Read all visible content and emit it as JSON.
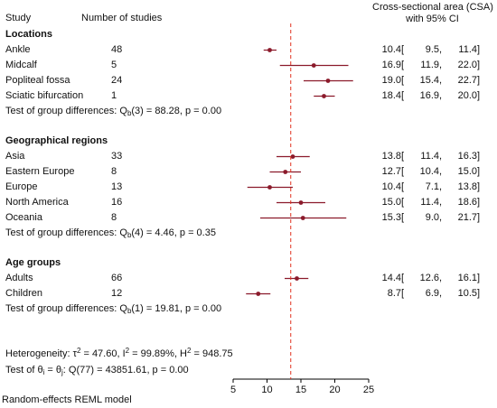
{
  "header": {
    "col_study": "Study",
    "col_num": "Number of studies",
    "col_effect_line1": "Cross-sectional area (CSA)",
    "col_effect_line2": "with 95% CI"
  },
  "chart_data": {
    "type": "forest",
    "ref_line": 13.5,
    "xlim": [
      5,
      25
    ],
    "xticks": [
      5,
      10,
      15,
      20,
      25
    ],
    "groups": [
      {
        "title": "Locations",
        "rows": [
          {
            "label": "Ankle",
            "n": "48",
            "est": 10.4,
            "lo": 9.5,
            "hi": 11.4,
            "est_s": "10.4",
            "lo_s": "9.5",
            "hi_s": "11.4"
          },
          {
            "label": "Midcalf",
            "n": "5",
            "est": 16.9,
            "lo": 11.9,
            "hi": 22.0,
            "est_s": "16.9",
            "lo_s": "11.9",
            "hi_s": "22.0"
          },
          {
            "label": "Popliteal fossa",
            "n": "24",
            "est": 19.0,
            "lo": 15.4,
            "hi": 22.7,
            "est_s": "19.0",
            "lo_s": "15.4",
            "hi_s": "22.7"
          },
          {
            "label": "Sciatic bifurcation",
            "n": "1",
            "est": 18.4,
            "lo": 16.9,
            "hi": 20.0,
            "est_s": "18.4",
            "lo_s": "16.9",
            "hi_s": "20.0"
          }
        ],
        "test": {
          "pre": "Test of group differences: Q",
          "sub": "b",
          "post": "(3) = 88.28, p = 0.00"
        }
      },
      {
        "title": "Geographical regions",
        "rows": [
          {
            "label": "Asia",
            "n": "33",
            "est": 13.8,
            "lo": 11.4,
            "hi": 16.3,
            "est_s": "13.8",
            "lo_s": "11.4",
            "hi_s": "16.3"
          },
          {
            "label": "Eastern Europe",
            "n": "8",
            "est": 12.7,
            "lo": 10.4,
            "hi": 15.0,
            "est_s": "12.7",
            "lo_s": "10.4",
            "hi_s": "15.0"
          },
          {
            "label": "Europe",
            "n": "13",
            "est": 10.4,
            "lo": 7.1,
            "hi": 13.8,
            "est_s": "10.4",
            "lo_s": "7.1",
            "hi_s": "13.8"
          },
          {
            "label": "North America",
            "n": "16",
            "est": 15.0,
            "lo": 11.4,
            "hi": 18.6,
            "est_s": "15.0",
            "lo_s": "11.4",
            "hi_s": "18.6"
          },
          {
            "label": "Oceania",
            "n": "8",
            "est": 15.3,
            "lo": 9.0,
            "hi": 21.7,
            "est_s": "15.3",
            "lo_s": "9.0",
            "hi_s": "21.7"
          }
        ],
        "test": {
          "pre": "Test of group differences: Q",
          "sub": "b",
          "post": "(4) = 4.46, p = 0.35"
        }
      },
      {
        "title": "Age groups",
        "rows": [
          {
            "label": "Adults",
            "n": "66",
            "est": 14.4,
            "lo": 12.6,
            "hi": 16.1,
            "est_s": "14.4",
            "lo_s": "12.6",
            "hi_s": "16.1"
          },
          {
            "label": "Children",
            "n": "12",
            "est": 8.7,
            "lo": 6.9,
            "hi": 10.5,
            "est_s": "8.7",
            "lo_s": "6.9",
            "hi_s": "10.5"
          }
        ],
        "test": {
          "pre": "Test of group differences: Q",
          "sub": "b",
          "post": "(1) = 19.81, p = 0.00"
        }
      }
    ],
    "heterogeneity": {
      "prefix": "Heterogeneity: τ",
      "sup1": "2",
      "mid1": " = 47.60, I",
      "sup2": "2",
      "mid2": " = 99.89%, H",
      "sup3": "2",
      "tail": " = 948.75"
    },
    "homogeneity": {
      "prefix": "Test of θ",
      "sub1": "i",
      "mid": " = θ",
      "sub2": "j",
      "tail": ": Q(77) = 43851.61, p = 0.00"
    },
    "footnote": "Random-effects REML model",
    "colors": {
      "marker": "#8b1a2b",
      "ci": "#8b1a2b",
      "ref": "#e0301e",
      "axis": "#000000"
    }
  }
}
